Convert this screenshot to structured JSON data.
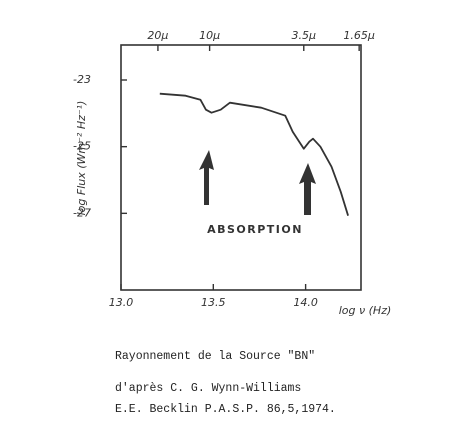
{
  "chart_data": {
    "type": "line",
    "y_label": "log Flux (Wm⁻² Hz⁻¹)",
    "x_label": "log ν (Hz)",
    "annotation": "ABSORPTION",
    "x": [
      13.21,
      13.35,
      13.43,
      13.46,
      13.49,
      13.54,
      13.59,
      13.76,
      13.89,
      13.93,
      13.99,
      14.02,
      14.04,
      14.08,
      14.14,
      14.19,
      14.23
    ],
    "values": [
      -23.41,
      -23.47,
      -23.59,
      -23.89,
      -23.98,
      -23.89,
      -23.68,
      -23.83,
      -24.07,
      -24.55,
      -25.06,
      -24.85,
      -24.76,
      -25.0,
      -25.6,
      -26.35,
      -27.07
    ],
    "color": "#333333",
    "xlim": [
      13.0,
      14.3
    ],
    "ylim": [
      -29.3,
      -21.95
    ],
    "xticks": [
      {
        "value": 13.0,
        "label": "13.0"
      },
      {
        "value": 13.5,
        "label": "13.5"
      },
      {
        "value": 14.0,
        "label": "14.0"
      }
    ],
    "yticks": [
      -27,
      -25,
      -23
    ],
    "x2ticks": [
      {
        "value": 13.2,
        "label": "20μ"
      },
      {
        "value": 13.48,
        "label": "10μ"
      },
      {
        "value": 13.99,
        "label": "3.5μ"
      },
      {
        "value": 14.29,
        "label": "1.65μ"
      }
    ],
    "caption": [
      "Rayonnement de la Source \"BN\"",
      "d'après C. G. Wynn-Williams",
      "E.E. Becklin  P.A.S.P. 86,5,1974."
    ]
  }
}
